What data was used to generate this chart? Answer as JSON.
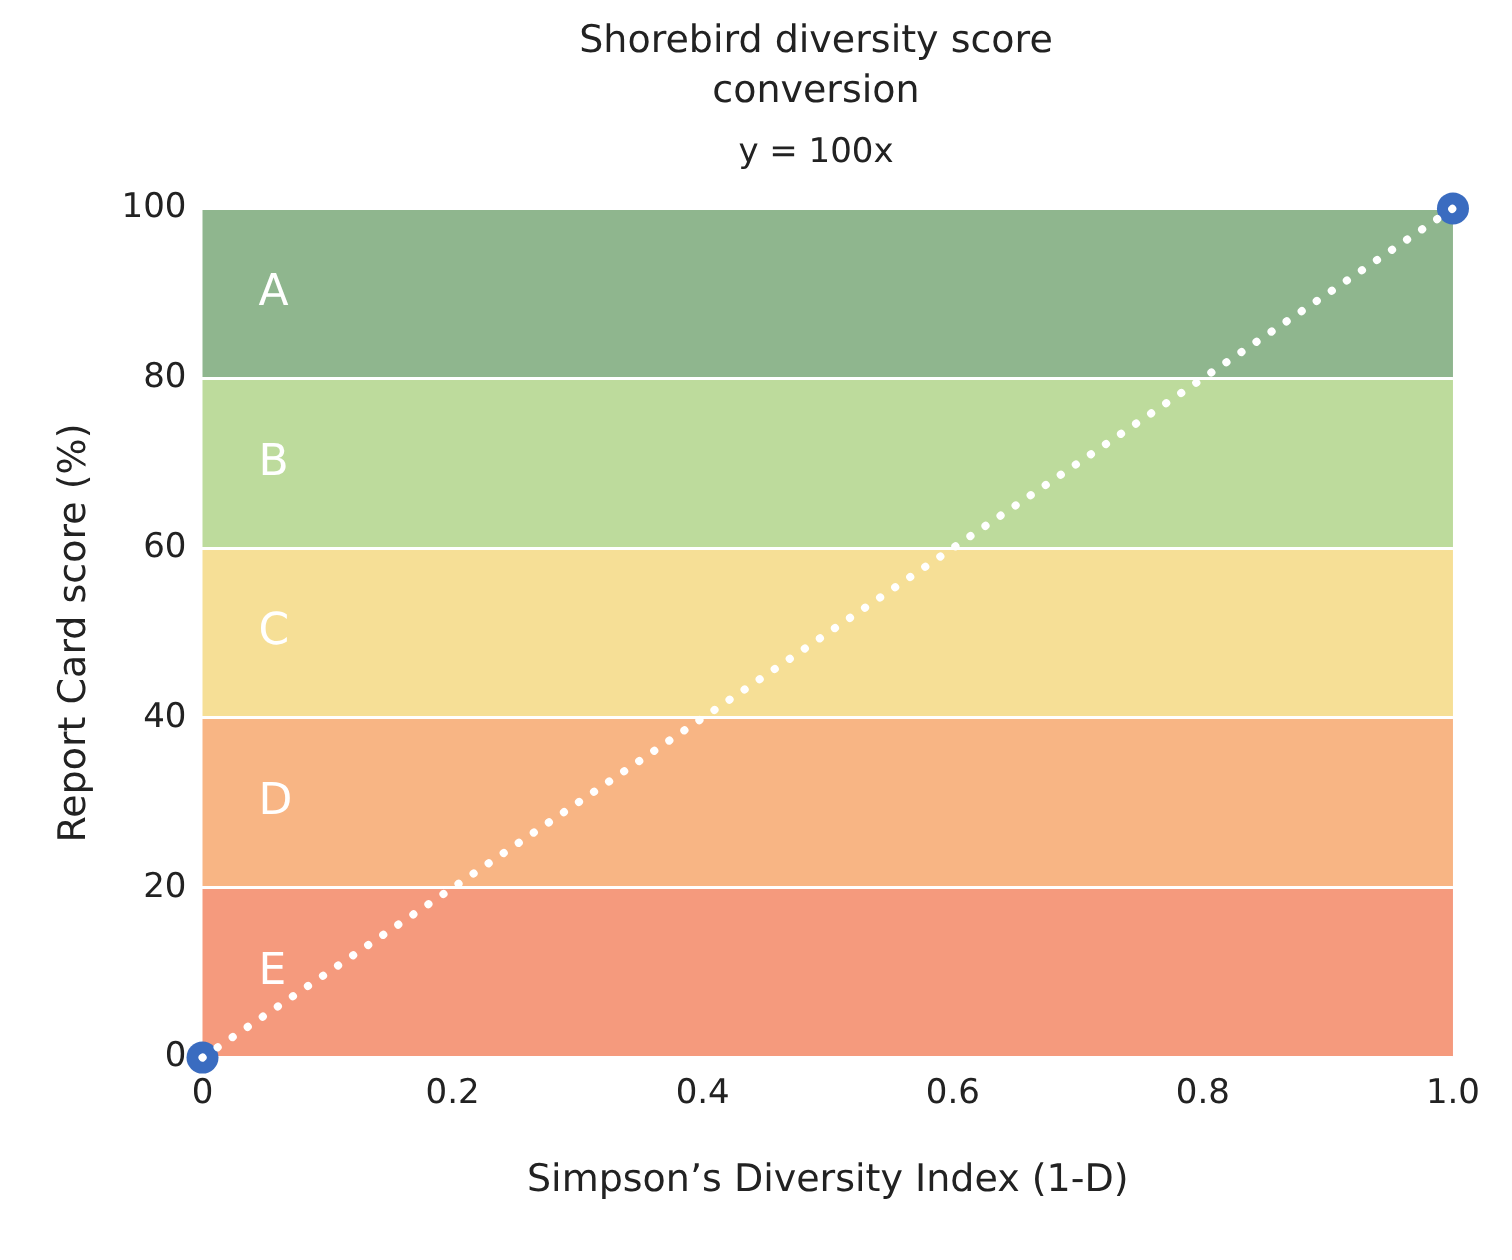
{
  "chart_data": {
    "type": "line",
    "title": "Shorebird diversity score conversion",
    "subtitle": "y = 100x",
    "xlabel": "Simpson’s Diversity Index (1-D)",
    "ylabel": "Report Card score (%)",
    "xlim": [
      0,
      1
    ],
    "xticks": [
      0,
      0.2,
      0.4,
      0.6,
      0.8,
      {
        "value": 1,
        "label": "1.0"
      }
    ],
    "ylim": [
      0,
      100
    ],
    "yticks": [
      0,
      20,
      40,
      60,
      80,
      100
    ],
    "grid": "y",
    "legend": false,
    "bands": [
      {
        "axis": "y",
        "from": 80,
        "to": 100,
        "label": "A",
        "color": "#8fb68e"
      },
      {
        "axis": "y",
        "from": 60,
        "to": 80,
        "label": "B",
        "color": "#bddb9c"
      },
      {
        "axis": "y",
        "from": 40,
        "to": 60,
        "label": "C",
        "color": "#f6df96"
      },
      {
        "axis": "y",
        "from": 20,
        "to": 40,
        "label": "D",
        "color": "#f8b584"
      },
      {
        "axis": "y",
        "from": 0,
        "to": 20,
        "label": "E",
        "color": "#f59a7d"
      }
    ],
    "x": [
      0,
      1
    ],
    "series": [
      {
        "type": "line",
        "color": "#ffffff",
        "values": [
          0,
          100
        ],
        "line_style": "dotted",
        "marker": "none"
      },
      {
        "type": "scatter",
        "color": "#3a6cc0",
        "values": [
          0,
          100
        ],
        "marker": "circle"
      }
    ]
  }
}
